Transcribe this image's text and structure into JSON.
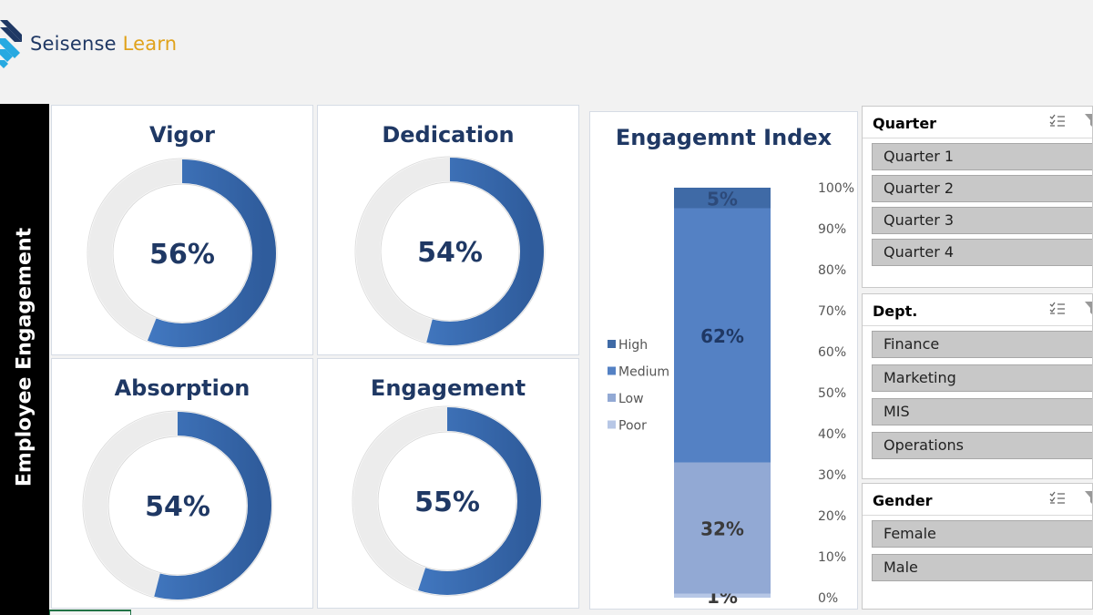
{
  "brand": {
    "name_part1": "Seisense",
    "name_part2": "Learn"
  },
  "sidebar": {
    "title": "Employee Engagement"
  },
  "colors": {
    "ring_fill": "#4a7ec4",
    "ring_track": "#ececec",
    "high": "#3f6aa6",
    "medium": "#5481c4",
    "low": "#92a9d4",
    "poor": "#b7c7e6",
    "text_dark": "#1f3864"
  },
  "kpis": [
    {
      "title": "Vigor",
      "value": 0.56,
      "label": "56%"
    },
    {
      "title": "Dedication",
      "value": 0.54,
      "label": "54%"
    },
    {
      "title": "Absorption",
      "value": 0.54,
      "label": "54%"
    },
    {
      "title": "Engagement",
      "value": 0.55,
      "label": "55%"
    }
  ],
  "chart_data": {
    "type": "bar",
    "stacked": true,
    "title": "Engagemnt Index",
    "categories": [
      ""
    ],
    "series": [
      {
        "name": "Poor",
        "values": [
          1
        ],
        "label": "1%"
      },
      {
        "name": "Low",
        "values": [
          32
        ],
        "label": "32%"
      },
      {
        "name": "Medium",
        "values": [
          62
        ],
        "label": "62%"
      },
      {
        "name": "High",
        "values": [
          5
        ],
        "label": "5%"
      }
    ],
    "legend_order": [
      "High",
      "Medium",
      "Low",
      "Poor"
    ],
    "legend_position": "left",
    "ylim": [
      0,
      100
    ],
    "yticks": [
      "0%",
      "10%",
      "20%",
      "30%",
      "40%",
      "50%",
      "60%",
      "70%",
      "80%",
      "90%",
      "100%"
    ],
    "yaxis_position": "right"
  },
  "slicers": {
    "quarter": {
      "title": "Quarter",
      "items": [
        "Quarter 1",
        "Quarter 2",
        "Quarter 3",
        "Quarter 4"
      ]
    },
    "dept": {
      "title": "Dept.",
      "items": [
        "Finance",
        "Marketing",
        "MIS",
        "Operations"
      ]
    },
    "gender": {
      "title": "Gender",
      "items": [
        "Female",
        "Male"
      ]
    }
  }
}
